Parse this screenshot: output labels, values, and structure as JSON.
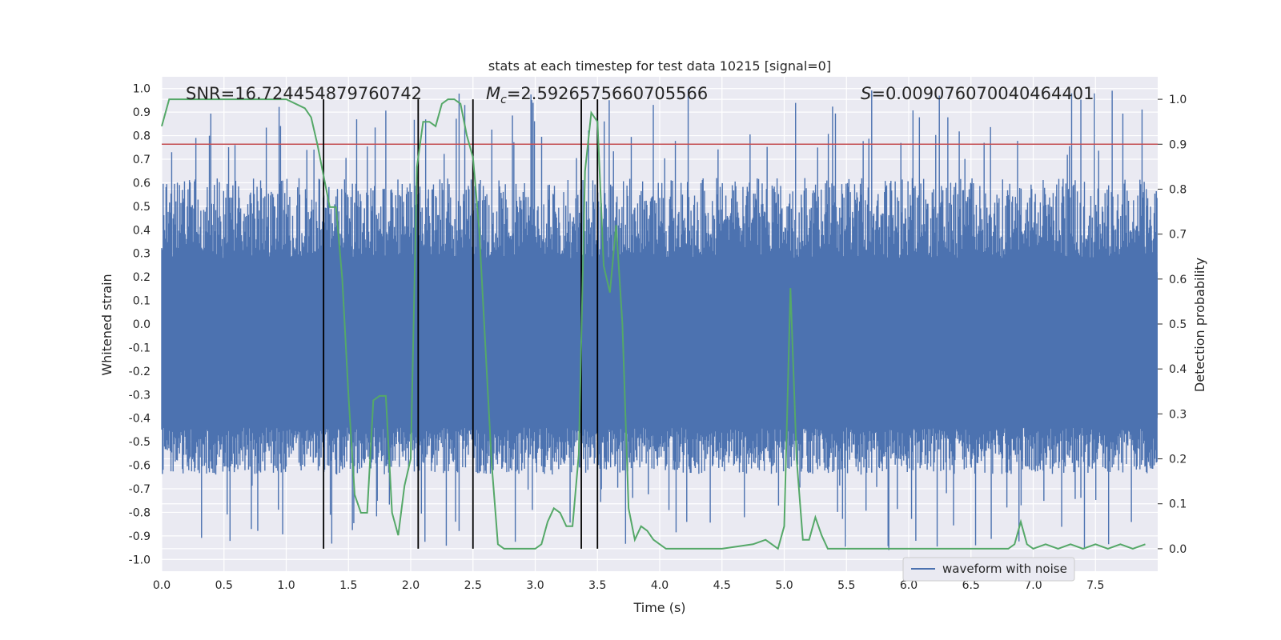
{
  "chart_data": {
    "type": "line",
    "title": "stats at each timestep for test data 10215 [signal=0]",
    "xlabel": "Time (s)",
    "ylabel_left": "Whitened strain",
    "ylabel_right": "Detection probability",
    "xlim": [
      0,
      8.0
    ],
    "ylim_left": [
      -1.05,
      1.05
    ],
    "ylim_right": [
      -0.05,
      1.05
    ],
    "xticks": [
      "0.0",
      "0.5",
      "1.0",
      "1.5",
      "2.0",
      "2.5",
      "3.0",
      "3.5",
      "4.0",
      "4.5",
      "5.0",
      "5.5",
      "6.0",
      "6.5",
      "7.0",
      "7.5"
    ],
    "yticks_left": [
      "1.0",
      "0.9",
      "0.8",
      "0.7",
      "0.6",
      "0.5",
      "0.4",
      "0.3",
      "0.2",
      "0.1",
      "0.0",
      "-0.1",
      "-0.2",
      "-0.3",
      "-0.4",
      "-0.5",
      "-0.6",
      "-0.7",
      "-0.8",
      "-0.9",
      "-1.0"
    ],
    "yticks_right": [
      "1.0",
      "0.9",
      "0.8",
      "0.7",
      "0.6",
      "0.5",
      "0.4",
      "0.3",
      "0.2",
      "0.1",
      "0.0"
    ],
    "grid": true,
    "legend": {
      "position": "bottom-right",
      "entries": [
        "waveform with noise"
      ]
    },
    "annotations": {
      "snr": "SNR=16.724454879760742",
      "mc": "=2.5926575660705566",
      "mc_symbol": "M",
      "mc_sub": "c",
      "s": "=0.009076070040464401",
      "s_symbol": "S"
    },
    "threshold": 0.9,
    "vertical_lines": [
      1.3,
      2.06,
      2.5,
      3.37,
      3.5
    ],
    "waveform_noise": {
      "color": "#4c72b0",
      "seed": 10215,
      "num_points": 1400,
      "envelope_max": 0.62,
      "envelope_min": -0.64,
      "peak_max": 1.0,
      "peak_min": -0.96
    },
    "series": [
      {
        "name": "detection probability",
        "color": "#55a868",
        "x": [
          0.0,
          0.06,
          0.2,
          0.5,
          1.0,
          1.15,
          1.2,
          1.25,
          1.3,
          1.35,
          1.4,
          1.45,
          1.5,
          1.55,
          1.6,
          1.65,
          1.7,
          1.75,
          1.8,
          1.85,
          1.9,
          1.95,
          2.0,
          2.05,
          2.1,
          2.15,
          2.2,
          2.25,
          2.3,
          2.35,
          2.4,
          2.45,
          2.5,
          2.55,
          2.6,
          2.65,
          2.7,
          2.75,
          2.8,
          3.0,
          3.05,
          3.1,
          3.15,
          3.2,
          3.25,
          3.3,
          3.35,
          3.4,
          3.45,
          3.5,
          3.55,
          3.6,
          3.65,
          3.7,
          3.75,
          3.8,
          3.85,
          3.9,
          3.95,
          4.0,
          4.05,
          4.1,
          4.2,
          4.5,
          4.75,
          4.85,
          4.9,
          4.95,
          5.0,
          5.05,
          5.1,
          5.15,
          5.2,
          5.25,
          5.3,
          5.35,
          5.4,
          5.45,
          5.5,
          5.6,
          5.7,
          5.9,
          6.2,
          6.8,
          6.85,
          6.9,
          6.95,
          7.0,
          7.1,
          7.2,
          7.3,
          7.4,
          7.5,
          7.6,
          7.7,
          7.8,
          7.9
        ],
        "values": [
          0.94,
          1.0,
          1.0,
          1.0,
          1.0,
          0.98,
          0.96,
          0.9,
          0.83,
          0.76,
          0.76,
          0.6,
          0.34,
          0.12,
          0.08,
          0.08,
          0.33,
          0.34,
          0.34,
          0.08,
          0.03,
          0.14,
          0.2,
          0.85,
          0.95,
          0.95,
          0.94,
          0.99,
          1.0,
          1.0,
          0.99,
          0.92,
          0.87,
          0.71,
          0.45,
          0.19,
          0.01,
          0.0,
          0.0,
          0.0,
          0.01,
          0.06,
          0.09,
          0.08,
          0.05,
          0.05,
          0.21,
          0.84,
          0.97,
          0.95,
          0.63,
          0.57,
          0.72,
          0.5,
          0.09,
          0.02,
          0.05,
          0.04,
          0.02,
          0.01,
          0.0,
          0.0,
          0.0,
          0.0,
          0.01,
          0.02,
          0.01,
          0.0,
          0.05,
          0.58,
          0.2,
          0.02,
          0.02,
          0.07,
          0.03,
          0.0,
          0.0,
          0.0,
          0.0,
          0.0,
          0.0,
          0.0,
          0.0,
          0.0,
          0.01,
          0.06,
          0.01,
          0.0,
          0.01,
          0.0,
          0.01,
          0.0,
          0.01,
          0.0,
          0.01,
          0.0,
          0.01
        ]
      }
    ]
  }
}
